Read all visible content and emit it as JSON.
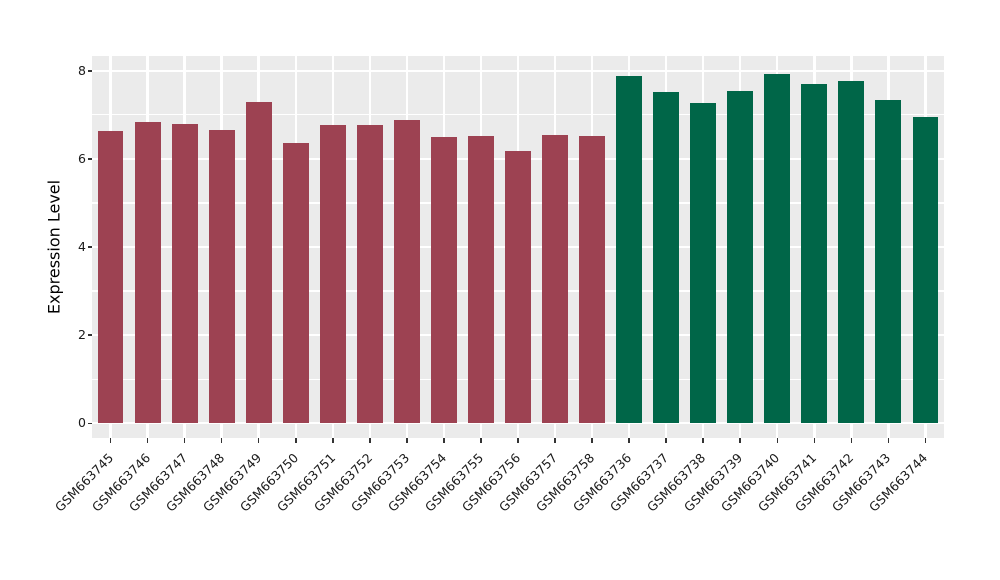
{
  "chart_data": {
    "type": "bar",
    "title": "",
    "xlabel": "",
    "ylabel": "Expression Level",
    "categories": [
      "GSM663745",
      "GSM663746",
      "GSM663747",
      "GSM663748",
      "GSM663749",
      "GSM663750",
      "GSM663751",
      "GSM663752",
      "GSM663753",
      "GSM663754",
      "GSM663755",
      "GSM663756",
      "GSM663757",
      "GSM663758",
      "GSM663736",
      "GSM663737",
      "GSM663738",
      "GSM663739",
      "GSM663740",
      "GSM663741",
      "GSM663742",
      "GSM663743",
      "GSM663744"
    ],
    "values": [
      6.63,
      6.84,
      6.8,
      6.66,
      7.3,
      6.37,
      6.77,
      6.76,
      6.88,
      6.49,
      6.51,
      6.19,
      6.55,
      6.53,
      7.87,
      7.51,
      7.26,
      7.53,
      7.93,
      7.7,
      7.77,
      7.33,
      6.96
    ],
    "groups": [
      {
        "name": "group-1",
        "color": "#9D4252",
        "start": 0,
        "count": 14
      },
      {
        "name": "group-2",
        "color": "#006648",
        "start": 14,
        "count": 9
      }
    ],
    "y_ticks": [
      0,
      2,
      4,
      6,
      8
    ],
    "y_minor_ticks": [
      1,
      3,
      5,
      7
    ],
    "ylim": [
      0,
      8.33
    ],
    "grid": true,
    "legend": "none",
    "panel_background": "#EBEBEB",
    "gridline_color": "#FFFFFF"
  }
}
